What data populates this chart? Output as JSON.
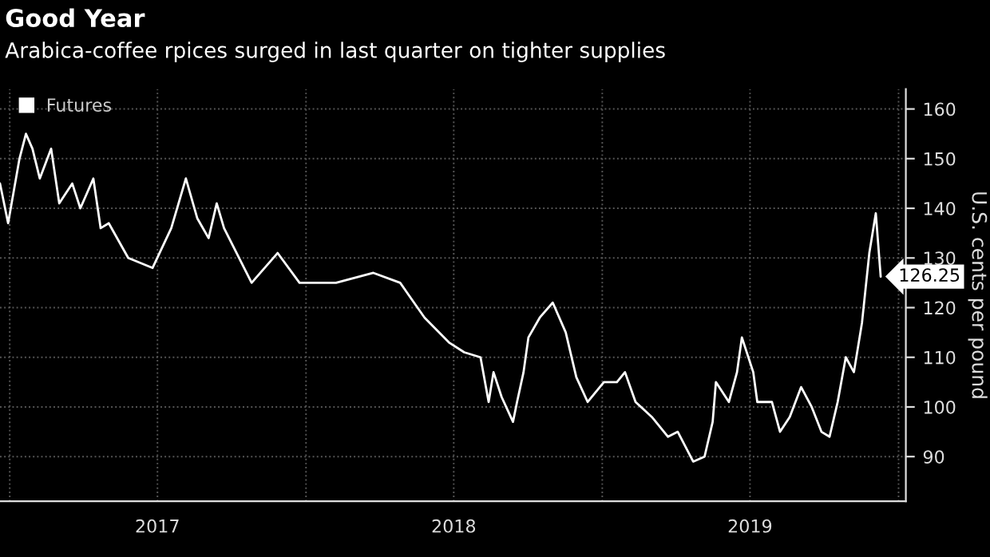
{
  "chart_data": {
    "type": "line",
    "title": "Good Year",
    "subtitle": "Arabica-coffee rpices surged in last quarter on tighter supplies",
    "ylabel": "U.S. cents per pound",
    "x": [
      "2016-12-20",
      "2016-12-30",
      "2017-01-13",
      "2017-01-21",
      "2017-01-29",
      "2017-02-07",
      "2017-02-21",
      "2017-03-03",
      "2017-03-19",
      "2017-03-29",
      "2017-04-14",
      "2017-04-23",
      "2017-05-03",
      "2017-05-27",
      "2017-06-26",
      "2017-07-19",
      "2017-08-06",
      "2017-08-20",
      "2017-09-03",
      "2017-09-13",
      "2017-09-22",
      "2017-10-26",
      "2017-11-27",
      "2017-12-24",
      "2018-02-07",
      "2018-03-25",
      "2018-04-27",
      "2018-05-27",
      "2018-06-26",
      "2018-07-15",
      "2018-08-04",
      "2018-08-14",
      "2018-08-20",
      "2018-08-30",
      "2018-09-13",
      "2018-09-18",
      "2018-09-26",
      "2018-10-02",
      "2018-10-16",
      "2018-11-01",
      "2018-11-17",
      "2018-11-30",
      "2018-12-14",
      "2019-01-03",
      "2019-01-19",
      "2019-01-29",
      "2019-02-11",
      "2019-03-03",
      "2019-03-23",
      "2019-04-04",
      "2019-04-23",
      "2019-05-07",
      "2019-05-17",
      "2019-05-21",
      "2019-06-06",
      "2019-06-16",
      "2019-06-22",
      "2019-07-06",
      "2019-07-11",
      "2019-07-29",
      "2019-08-08",
      "2019-08-20",
      "2019-09-03",
      "2019-09-16",
      "2019-09-28",
      "2019-10-08",
      "2019-10-18",
      "2019-10-28",
      "2019-11-07",
      "2019-11-17",
      "2019-11-26",
      "2019-12-04",
      "2019-12-10"
    ],
    "series": [
      {
        "name": "Futures",
        "color": "#ffffff",
        "values": [
          145,
          137,
          150,
          155,
          152,
          146,
          152,
          141,
          145,
          140,
          146,
          136,
          137,
          130,
          128,
          136,
          146,
          138,
          134,
          141,
          136,
          125,
          131,
          125,
          125,
          127,
          125,
          118,
          113,
          111,
          110,
          101,
          107,
          102,
          97,
          101,
          107,
          114,
          118,
          121,
          115,
          106,
          101,
          105,
          105,
          107,
          101,
          98,
          94,
          95,
          89,
          90,
          97,
          105,
          101,
          107,
          114,
          107,
          101,
          101,
          95,
          98,
          104,
          100,
          95,
          94,
          101,
          110,
          107,
          117,
          131,
          139,
          126.25
        ]
      }
    ],
    "ylim": [
      81,
      164
    ],
    "yticks": [
      90,
      100,
      110,
      120,
      130,
      140,
      150,
      160
    ],
    "xlim": [
      "2016-12-20",
      "2020-01-10"
    ],
    "xticks": [
      {
        "value": "2017-01-01",
        "label": null
      },
      {
        "value": "2017-07-02",
        "label": "2017"
      },
      {
        "value": "2018-01-01",
        "label": null
      },
      {
        "value": "2018-07-02",
        "label": "2018"
      },
      {
        "value": "2019-01-01",
        "label": null
      },
      {
        "value": "2019-07-02",
        "label": "2019"
      },
      {
        "value": "2020-01-01",
        "label": null
      }
    ],
    "annotations": [
      {
        "text": "126.25",
        "x": "2019-12-10",
        "y": 126.25
      }
    ],
    "grid": true,
    "legend": "top left",
    "line_style": "solid",
    "marker": "none"
  }
}
